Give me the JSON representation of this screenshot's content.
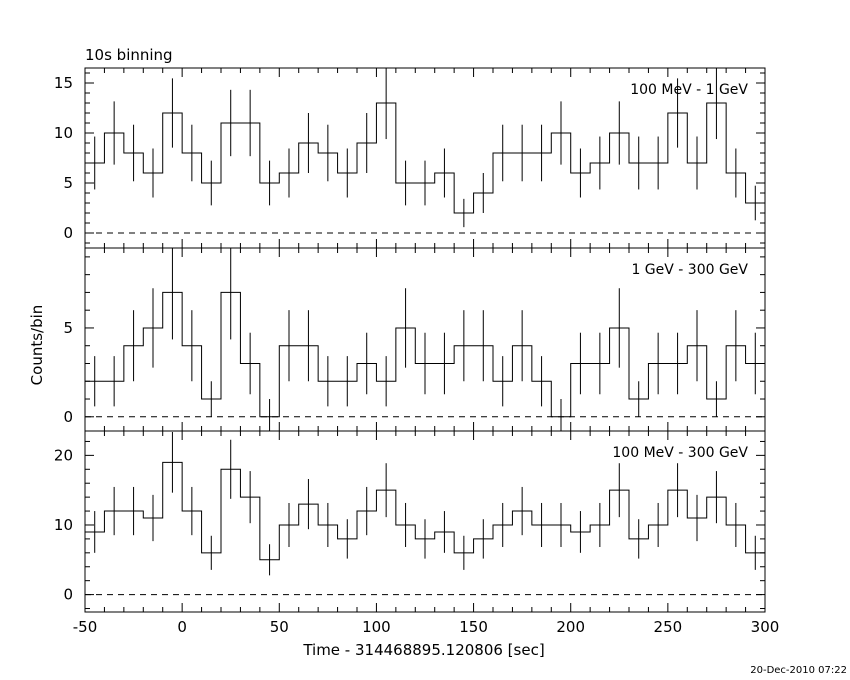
{
  "header": {
    "binning_label": "10s binning",
    "timestamp": "20-Dec-2010 07:22"
  },
  "chart_data": {
    "type": "line",
    "title": "10s binning",
    "xlabel": "Time - 314468895.120806 [sec]",
    "ylabel": "Counts/bin",
    "xlim": [
      -50,
      300
    ],
    "xticks": [
      -50,
      0,
      50,
      100,
      150,
      200,
      250,
      300
    ],
    "step": "histogram",
    "x": [
      -50,
      -40,
      -30,
      -20,
      -10,
      0,
      10,
      20,
      30,
      40,
      50,
      60,
      70,
      80,
      90,
      100,
      110,
      120,
      130,
      140,
      150,
      160,
      170,
      180,
      190,
      200,
      210,
      220,
      230,
      240,
      250,
      260,
      270,
      280,
      290
    ],
    "panels": [
      {
        "label": "100 MeV - 1 GeV",
        "ylim": [
          -1.5,
          16.5
        ],
        "yticks": [
          0,
          5,
          10,
          15
        ],
        "values": [
          7,
          10,
          8,
          6,
          12,
          8,
          5,
          11,
          11,
          5,
          6,
          9,
          8,
          6,
          9,
          13,
          5,
          5,
          6,
          2,
          4,
          8,
          8,
          8,
          10,
          6,
          7,
          10,
          7,
          7,
          12,
          7,
          13,
          6,
          3
        ]
      },
      {
        "label": "1 GeV - 300 GeV",
        "ylim": [
          -0.8,
          9.5
        ],
        "yticks": [
          0,
          5
        ],
        "values": [
          2,
          2,
          4,
          5,
          7,
          4,
          1,
          7,
          3,
          0,
          4,
          4,
          2,
          2,
          3,
          2,
          5,
          3,
          3,
          4,
          4,
          2,
          4,
          2,
          0,
          3,
          3,
          5,
          1,
          3,
          3,
          4,
          1,
          4,
          3
        ]
      },
      {
        "label": "100 MeV - 300 GeV",
        "ylim": [
          -2.5,
          23.5
        ],
        "yticks": [
          0,
          10,
          20
        ],
        "values": [
          9,
          12,
          12,
          11,
          19,
          12,
          6,
          18,
          14,
          5,
          10,
          13,
          10,
          8,
          12,
          15,
          10,
          8,
          9,
          6,
          8,
          10,
          12,
          10,
          10,
          9,
          10,
          15,
          8,
          10,
          15,
          11,
          14,
          10,
          6
        ]
      }
    ]
  }
}
